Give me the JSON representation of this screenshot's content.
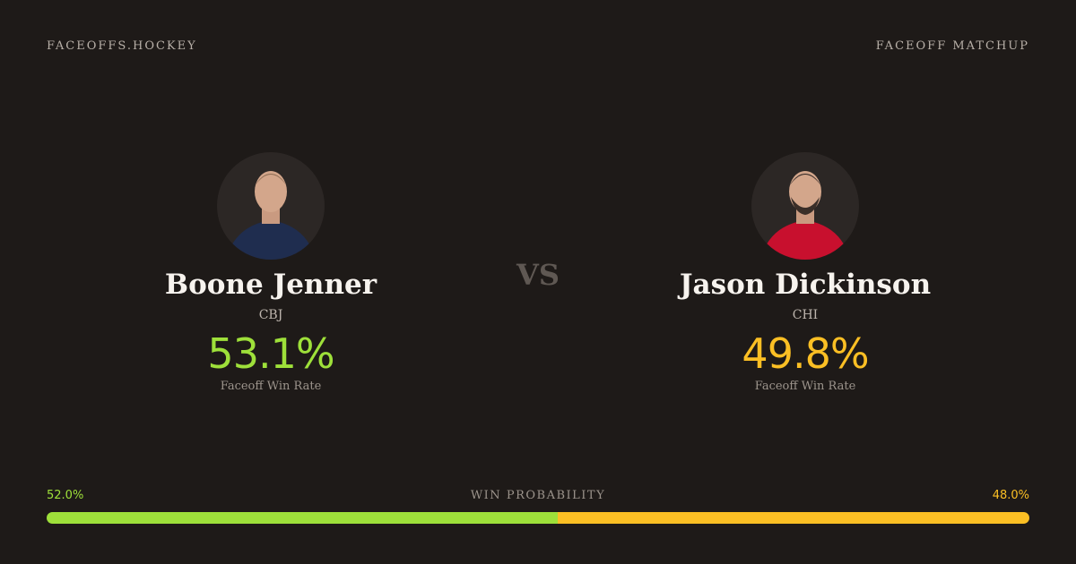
{
  "header": {
    "brand": "FACEOFFS.HOCKEY",
    "label": "FACEOFF MATCHUP"
  },
  "vs": "VS",
  "players": [
    {
      "name": "Boone Jenner",
      "team": "CBJ",
      "rate": "53.1%",
      "rate_label": "Faceoff Win Rate",
      "color": "#9ee03a"
    },
    {
      "name": "Jason Dickinson",
      "team": "CHI",
      "rate": "49.8%",
      "rate_label": "Faceoff Win Rate",
      "color": "#fbbf24"
    }
  ],
  "probability": {
    "label": "WIN PROBABILITY",
    "values": [
      52.0,
      48.0
    ],
    "value_labels": [
      "52.0%",
      "48.0%"
    ],
    "colors": [
      "#9ee03a",
      "#fbbf24"
    ]
  }
}
